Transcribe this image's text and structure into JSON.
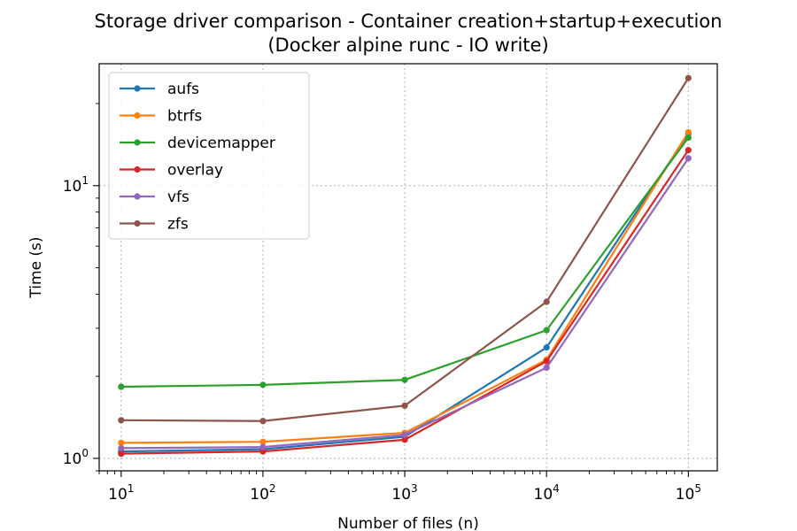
{
  "chart_data": {
    "type": "line",
    "title": "Storage driver comparison - Container creation+startup+execution",
    "subtitle": "(Docker alpine runc - IO write)",
    "xlabel": "Number of files (n)",
    "ylabel": "Time (s)",
    "xscale": "log",
    "yscale": "log",
    "xlim": [
      7,
      160000
    ],
    "ylim": [
      0.9,
      28
    ],
    "grid": true,
    "legend_position": "top-left",
    "x": [
      10,
      100,
      1000,
      10000,
      100000
    ],
    "x_ticks": [
      {
        "base": "10",
        "exp": "1",
        "value": 10
      },
      {
        "base": "10",
        "exp": "2",
        "value": 100
      },
      {
        "base": "10",
        "exp": "3",
        "value": 1000
      },
      {
        "base": "10",
        "exp": "4",
        "value": 10000
      },
      {
        "base": "10",
        "exp": "5",
        "value": 100000
      }
    ],
    "y_ticks": [
      {
        "base": "10",
        "exp": "0",
        "value": 1
      },
      {
        "base": "10",
        "exp": "1",
        "value": 10
      }
    ],
    "series": [
      {
        "name": "aufs",
        "color": "#1f77b4",
        "values": [
          1.06,
          1.08,
          1.2,
          2.55,
          15.5
        ]
      },
      {
        "name": "btrfs",
        "color": "#ff7f0e",
        "values": [
          1.14,
          1.15,
          1.24,
          2.3,
          15.7
        ]
      },
      {
        "name": "devicemapper",
        "color": "#2ca02c",
        "values": [
          1.83,
          1.86,
          1.94,
          2.95,
          15.0
        ]
      },
      {
        "name": "overlay",
        "color": "#d62728",
        "values": [
          1.04,
          1.06,
          1.17,
          2.27,
          13.5
        ]
      },
      {
        "name": "vfs",
        "color": "#9467bd",
        "values": [
          1.09,
          1.1,
          1.22,
          2.15,
          12.6
        ]
      },
      {
        "name": "zfs",
        "color": "#8c564b",
        "values": [
          1.38,
          1.37,
          1.56,
          3.75,
          24.8
        ]
      }
    ]
  }
}
